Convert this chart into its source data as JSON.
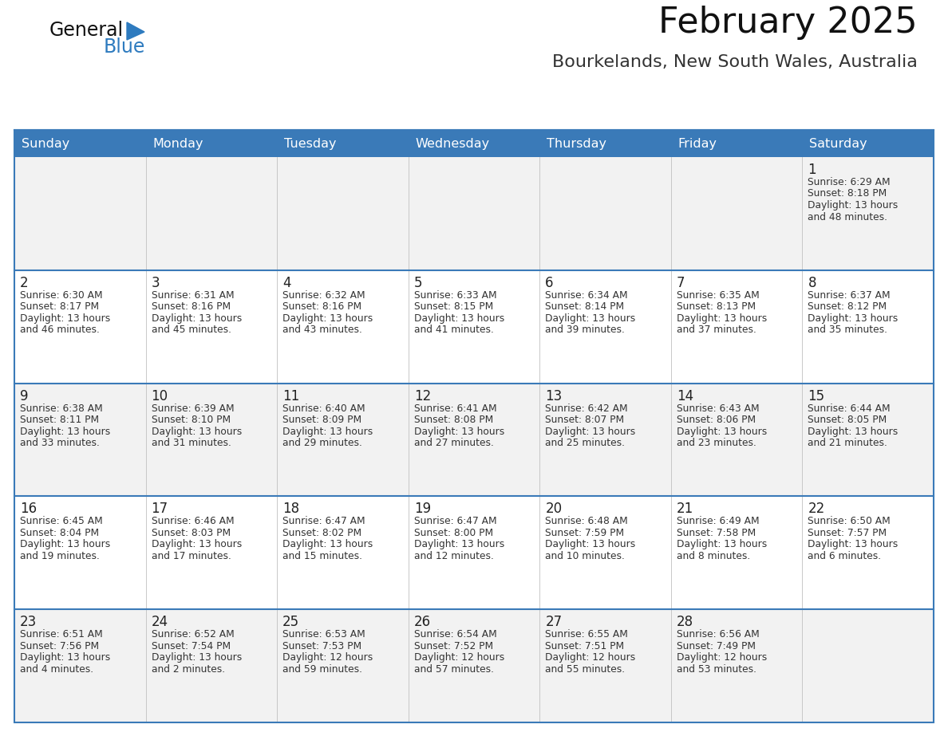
{
  "title": "February 2025",
  "subtitle": "Bourkelands, New South Wales, Australia",
  "header_color": "#3a7ab8",
  "header_text_color": "#ffffff",
  "day_names": [
    "Sunday",
    "Monday",
    "Tuesday",
    "Wednesday",
    "Thursday",
    "Friday",
    "Saturday"
  ],
  "bg_color": "#ffffff",
  "border_color": "#3a7ab8",
  "row_sep_color": "#3a7ab8",
  "col_sep_color": "#c0c0c0",
  "text_color": "#333333",
  "day_num_color": "#222222",
  "logo_text_color": "#111111",
  "logo_blue_color": "#2e7bbf",
  "title_color": "#111111",
  "subtitle_color": "#333333",
  "calendar_data": [
    [
      {
        "day": null,
        "info": null
      },
      {
        "day": null,
        "info": null
      },
      {
        "day": null,
        "info": null
      },
      {
        "day": null,
        "info": null
      },
      {
        "day": null,
        "info": null
      },
      {
        "day": null,
        "info": null
      },
      {
        "day": 1,
        "info": "Sunrise: 6:29 AM\nSunset: 8:18 PM\nDaylight: 13 hours\nand 48 minutes."
      }
    ],
    [
      {
        "day": 2,
        "info": "Sunrise: 6:30 AM\nSunset: 8:17 PM\nDaylight: 13 hours\nand 46 minutes."
      },
      {
        "day": 3,
        "info": "Sunrise: 6:31 AM\nSunset: 8:16 PM\nDaylight: 13 hours\nand 45 minutes."
      },
      {
        "day": 4,
        "info": "Sunrise: 6:32 AM\nSunset: 8:16 PM\nDaylight: 13 hours\nand 43 minutes."
      },
      {
        "day": 5,
        "info": "Sunrise: 6:33 AM\nSunset: 8:15 PM\nDaylight: 13 hours\nand 41 minutes."
      },
      {
        "day": 6,
        "info": "Sunrise: 6:34 AM\nSunset: 8:14 PM\nDaylight: 13 hours\nand 39 minutes."
      },
      {
        "day": 7,
        "info": "Sunrise: 6:35 AM\nSunset: 8:13 PM\nDaylight: 13 hours\nand 37 minutes."
      },
      {
        "day": 8,
        "info": "Sunrise: 6:37 AM\nSunset: 8:12 PM\nDaylight: 13 hours\nand 35 minutes."
      }
    ],
    [
      {
        "day": 9,
        "info": "Sunrise: 6:38 AM\nSunset: 8:11 PM\nDaylight: 13 hours\nand 33 minutes."
      },
      {
        "day": 10,
        "info": "Sunrise: 6:39 AM\nSunset: 8:10 PM\nDaylight: 13 hours\nand 31 minutes."
      },
      {
        "day": 11,
        "info": "Sunrise: 6:40 AM\nSunset: 8:09 PM\nDaylight: 13 hours\nand 29 minutes."
      },
      {
        "day": 12,
        "info": "Sunrise: 6:41 AM\nSunset: 8:08 PM\nDaylight: 13 hours\nand 27 minutes."
      },
      {
        "day": 13,
        "info": "Sunrise: 6:42 AM\nSunset: 8:07 PM\nDaylight: 13 hours\nand 25 minutes."
      },
      {
        "day": 14,
        "info": "Sunrise: 6:43 AM\nSunset: 8:06 PM\nDaylight: 13 hours\nand 23 minutes."
      },
      {
        "day": 15,
        "info": "Sunrise: 6:44 AM\nSunset: 8:05 PM\nDaylight: 13 hours\nand 21 minutes."
      }
    ],
    [
      {
        "day": 16,
        "info": "Sunrise: 6:45 AM\nSunset: 8:04 PM\nDaylight: 13 hours\nand 19 minutes."
      },
      {
        "day": 17,
        "info": "Sunrise: 6:46 AM\nSunset: 8:03 PM\nDaylight: 13 hours\nand 17 minutes."
      },
      {
        "day": 18,
        "info": "Sunrise: 6:47 AM\nSunset: 8:02 PM\nDaylight: 13 hours\nand 15 minutes."
      },
      {
        "day": 19,
        "info": "Sunrise: 6:47 AM\nSunset: 8:00 PM\nDaylight: 13 hours\nand 12 minutes."
      },
      {
        "day": 20,
        "info": "Sunrise: 6:48 AM\nSunset: 7:59 PM\nDaylight: 13 hours\nand 10 minutes."
      },
      {
        "day": 21,
        "info": "Sunrise: 6:49 AM\nSunset: 7:58 PM\nDaylight: 13 hours\nand 8 minutes."
      },
      {
        "day": 22,
        "info": "Sunrise: 6:50 AM\nSunset: 7:57 PM\nDaylight: 13 hours\nand 6 minutes."
      }
    ],
    [
      {
        "day": 23,
        "info": "Sunrise: 6:51 AM\nSunset: 7:56 PM\nDaylight: 13 hours\nand 4 minutes."
      },
      {
        "day": 24,
        "info": "Sunrise: 6:52 AM\nSunset: 7:54 PM\nDaylight: 13 hours\nand 2 minutes."
      },
      {
        "day": 25,
        "info": "Sunrise: 6:53 AM\nSunset: 7:53 PM\nDaylight: 12 hours\nand 59 minutes."
      },
      {
        "day": 26,
        "info": "Sunrise: 6:54 AM\nSunset: 7:52 PM\nDaylight: 12 hours\nand 57 minutes."
      },
      {
        "day": 27,
        "info": "Sunrise: 6:55 AM\nSunset: 7:51 PM\nDaylight: 12 hours\nand 55 minutes."
      },
      {
        "day": 28,
        "info": "Sunrise: 6:56 AM\nSunset: 7:49 PM\nDaylight: 12 hours\nand 53 minutes."
      },
      {
        "day": null,
        "info": null
      }
    ]
  ]
}
